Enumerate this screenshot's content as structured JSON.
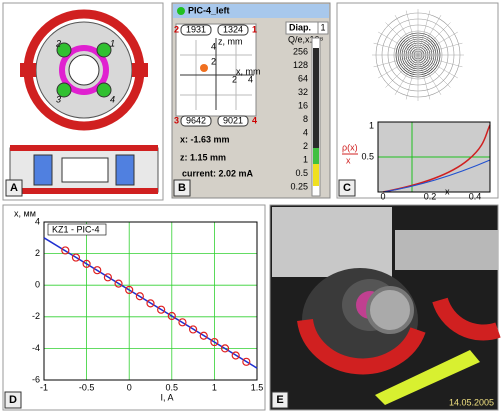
{
  "panels": {
    "a": "A",
    "b": "B",
    "c": "C",
    "d": "D",
    "e": "E"
  },
  "drawing_labels": [
    "1",
    "2",
    "3",
    "4"
  ],
  "monitor": {
    "title": "PIC-4_left",
    "diap_label": "Diap.",
    "diap_value": "1",
    "corners": [
      "2",
      "1",
      "3",
      "4"
    ],
    "signals": [
      "1931",
      "1324",
      "9642",
      "9021"
    ],
    "x_readout": "x: -1.63 mm",
    "z_readout": "z: 1.15 mm",
    "current": "current: 2.02 mA",
    "scale_title": "Q/e,x10⁸",
    "scale": [
      "256",
      "128",
      "64",
      "32",
      "16",
      "8",
      "4",
      "2",
      "1",
      "0.5",
      "0.25"
    ],
    "mini_axes": {
      "z": "z, mm",
      "x": "x, mm",
      "ticks": [
        "4",
        "2",
        "2",
        "4"
      ]
    }
  },
  "density_plot": {
    "y_label": "ρ(x)",
    "legend_x": "x",
    "yticks": [
      "1",
      "0.5"
    ],
    "xticks": [
      "0",
      "0.2",
      "0.4"
    ],
    "x_label": "x"
  },
  "chart_data": {
    "type": "scatter",
    "title": "KZ1 - PIC-4",
    "y_label": "x, мм",
    "x_label": "I, A",
    "xlim": [
      -1,
      1.5
    ],
    "xticks": [
      -1,
      -0.5,
      0,
      0.5,
      1,
      1.5
    ],
    "ylim": [
      -6,
      4
    ],
    "yticks": [
      -6,
      -4,
      -2,
      0,
      2,
      4
    ],
    "grid": true,
    "points": {
      "color": "#e02020",
      "x": [
        -0.75,
        -0.625,
        -0.5,
        -0.375,
        -0.25,
        -0.125,
        0,
        0.125,
        0.25,
        0.375,
        0.5,
        0.625,
        0.75,
        0.875,
        1,
        1.125,
        1.25,
        1.375
      ],
      "values": [
        2.2,
        1.75,
        1.35,
        0.95,
        0.5,
        0.1,
        -0.3,
        -0.7,
        -1.15,
        -1.55,
        -1.95,
        -2.35,
        -2.8,
        -3.2,
        -3.6,
        -4.0,
        -4.45,
        -4.85
      ]
    },
    "fit_line": {
      "color": "#2030d0",
      "x": [
        -1,
        1.5
      ],
      "values": [
        3.0,
        -5.25
      ]
    }
  },
  "photo": {
    "date": "14.05.2005"
  }
}
